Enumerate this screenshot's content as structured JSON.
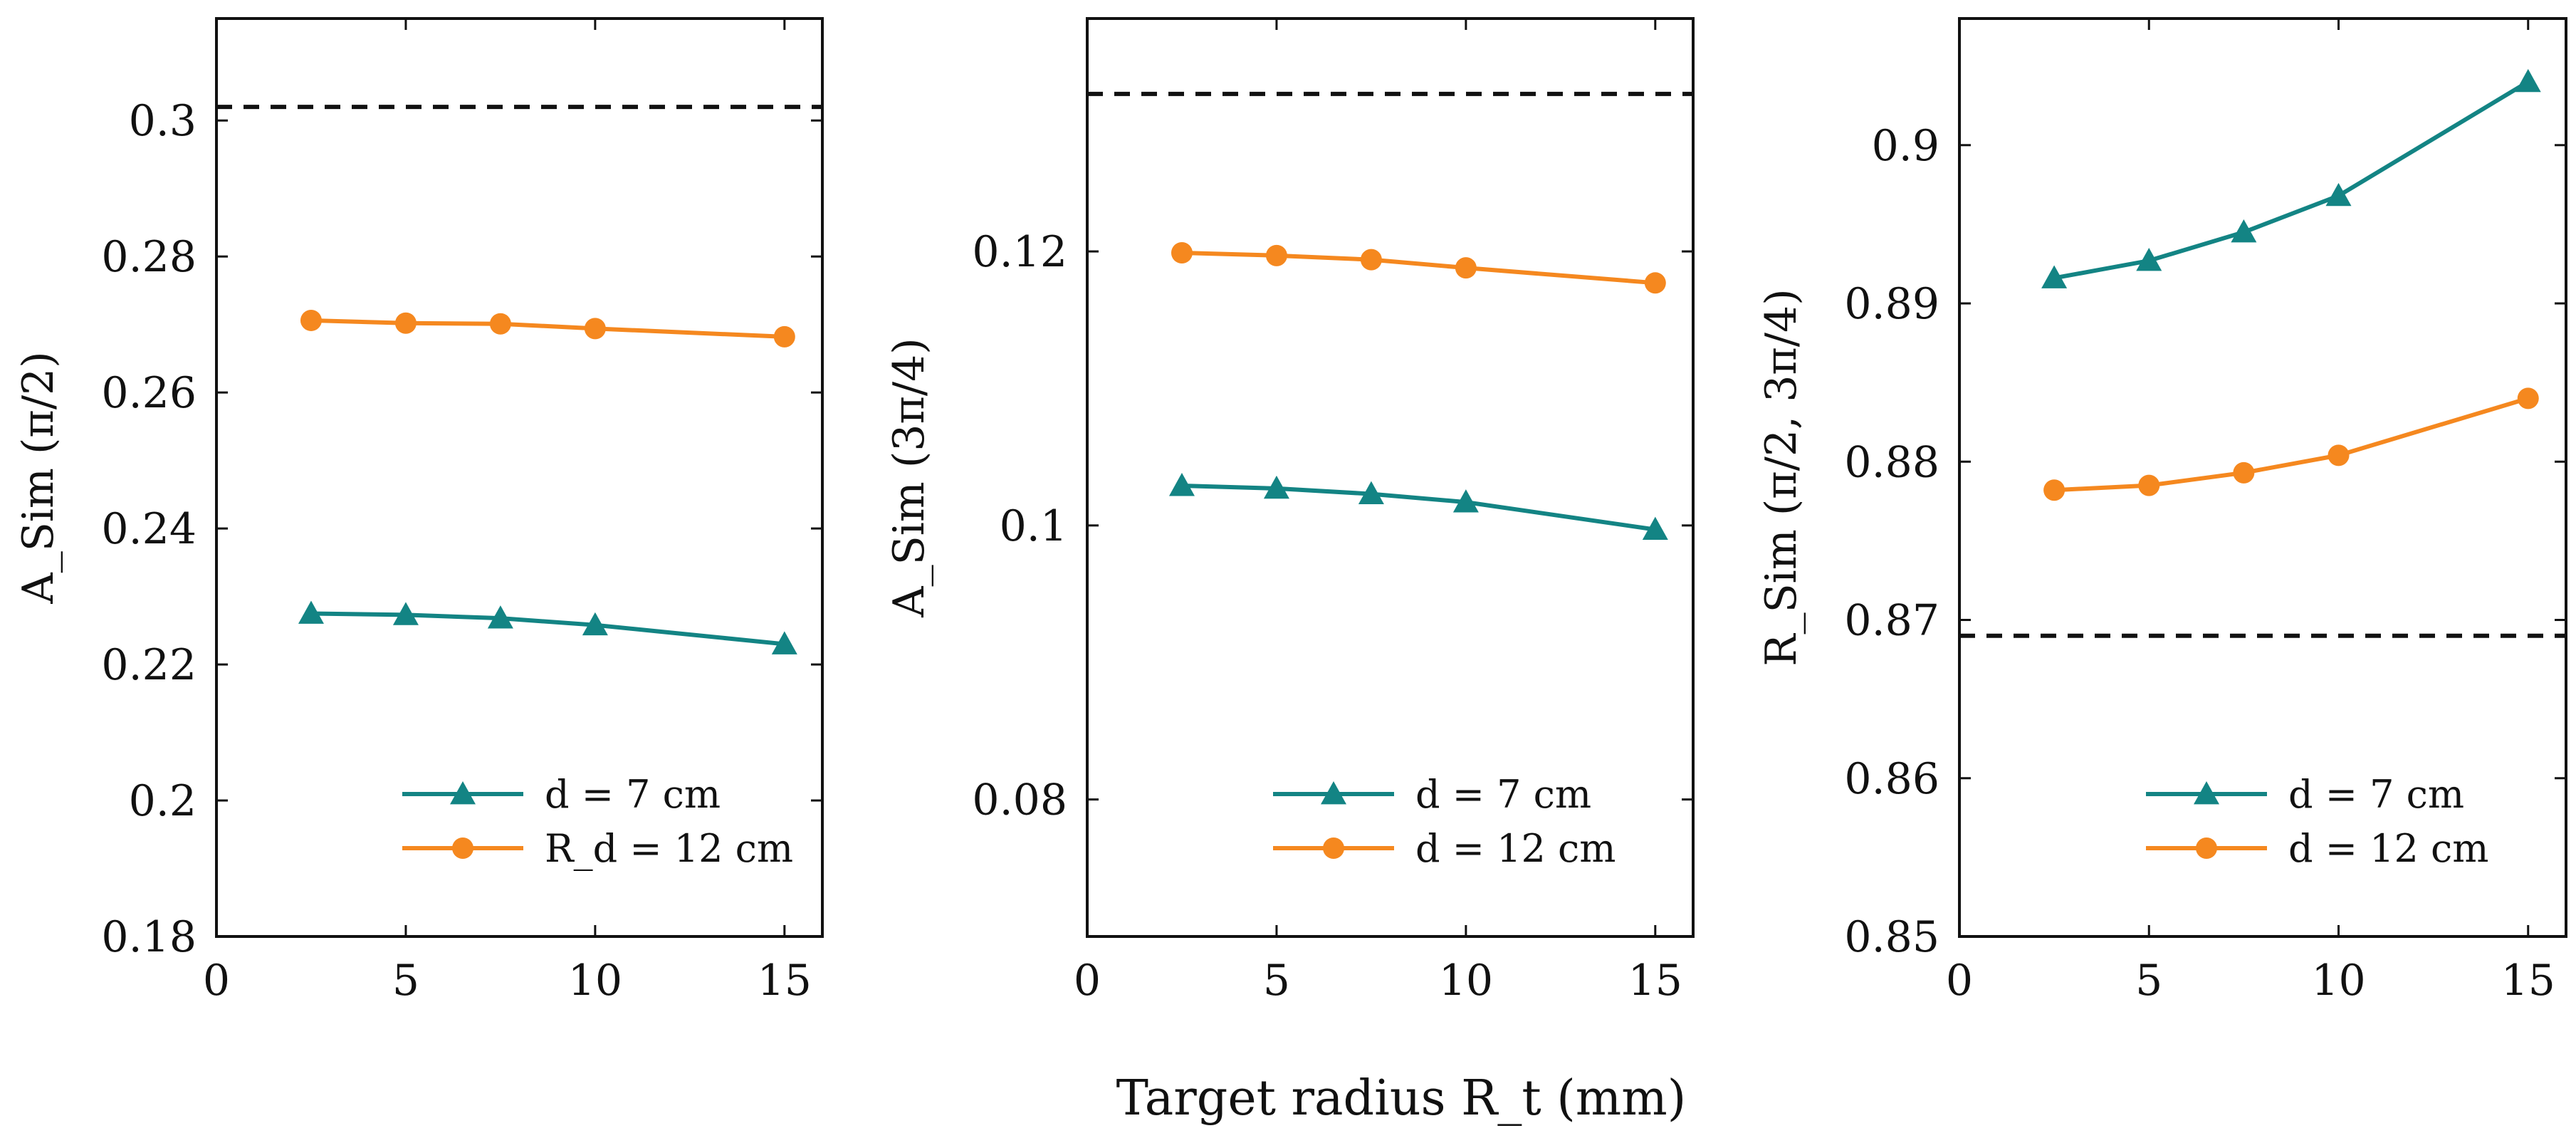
{
  "figure": {
    "xlabel": "Target radius R_t (mm)"
  },
  "chart_data": [
    {
      "type": "line",
      "title": "",
      "xlabel": "",
      "ylabel": "A_Sim (π/2)",
      "xlim": [
        0,
        16
      ],
      "ylim": [
        0.18,
        0.315
      ],
      "xticks": [
        0,
        5,
        10,
        15
      ],
      "xtick_labels": [
        "0",
        "5",
        "10",
        "15"
      ],
      "yticks": [
        0.18,
        0.2,
        0.22,
        0.24,
        0.26,
        0.28,
        0.3
      ],
      "ytick_labels": [
        "0.18",
        "0.2",
        "0.22",
        "0.24",
        "0.26",
        "0.28",
        "0.3"
      ],
      "reference_line": 0.302,
      "legend_position": "bottom-right",
      "series": [
        {
          "name": "d = 7 cm",
          "marker": "triangle",
          "color": "#138484",
          "x": [
            2.5,
            5,
            7.5,
            10,
            15
          ],
          "values": [
            0.2275,
            0.2273,
            0.2268,
            0.2258,
            0.223
          ]
        },
        {
          "name": "R_d = 12 cm",
          "marker": "circle",
          "color": "#f5881f",
          "x": [
            2.5,
            5,
            7.5,
            10,
            15
          ],
          "values": [
            0.2706,
            0.2702,
            0.2701,
            0.2694,
            0.2682
          ]
        }
      ]
    },
    {
      "type": "line",
      "title": "",
      "xlabel": "",
      "ylabel": "A_Sim (3π/4)",
      "xlim": [
        0,
        16
      ],
      "ylim": [
        0.07,
        0.137
      ],
      "xticks": [
        0,
        5,
        10,
        15
      ],
      "xtick_labels": [
        "0",
        "5",
        "10",
        "15"
      ],
      "yticks": [
        0.08,
        0.1,
        0.12
      ],
      "ytick_labels": [
        "0.08",
        "0.1",
        "0.12"
      ],
      "reference_line": 0.1315,
      "legend_position": "bottom-right",
      "series": [
        {
          "name": "d = 7 cm",
          "marker": "triangle",
          "color": "#138484",
          "x": [
            2.5,
            5,
            7.5,
            10,
            15
          ],
          "values": [
            0.1029,
            0.1027,
            0.1023,
            0.1017,
            0.0997
          ]
        },
        {
          "name": "d = 12 cm",
          "marker": "circle",
          "color": "#f5881f",
          "x": [
            2.5,
            5,
            7.5,
            10,
            15
          ],
          "values": [
            0.1199,
            0.1197,
            0.1194,
            0.1188,
            0.1177
          ]
        }
      ]
    },
    {
      "type": "line",
      "title": "",
      "xlabel": "",
      "ylabel": "R_Sim (π/2, 3π/4)",
      "xlim": [
        0,
        16
      ],
      "ylim": [
        0.85,
        0.908
      ],
      "xticks": [
        0,
        5,
        10,
        15
      ],
      "xtick_labels": [
        "0",
        "5",
        "10",
        "15"
      ],
      "yticks": [
        0.85,
        0.86,
        0.87,
        0.88,
        0.89,
        0.9
      ],
      "ytick_labels": [
        "0.85",
        "0.86",
        "0.87",
        "0.88",
        "0.89",
        "0.9"
      ],
      "reference_line": 0.869,
      "legend_position": "bottom-right",
      "series": [
        {
          "name": "d = 7 cm",
          "marker": "triangle",
          "color": "#138484",
          "x": [
            2.5,
            5,
            7.5,
            10,
            15
          ],
          "values": [
            0.8916,
            0.8927,
            0.8945,
            0.8968,
            0.904
          ]
        },
        {
          "name": "d = 12 cm",
          "marker": "circle",
          "color": "#f5881f",
          "x": [
            2.5,
            5,
            7.5,
            10,
            15
          ],
          "values": [
            0.8782,
            0.8785,
            0.8793,
            0.8804,
            0.884
          ]
        }
      ]
    }
  ]
}
